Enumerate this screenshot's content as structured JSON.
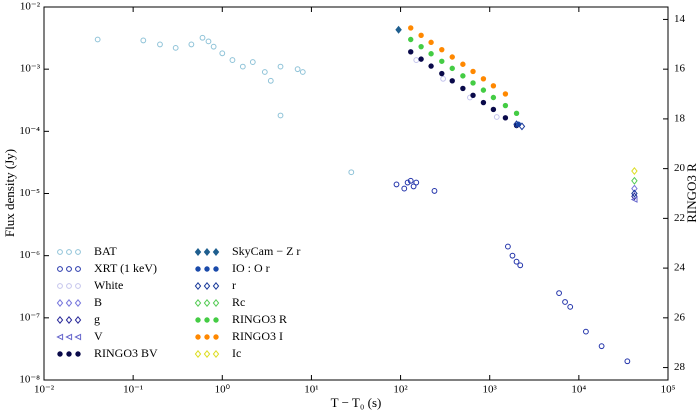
{
  "chart_data": {
    "type": "scatter",
    "xlabel": "T − T₀ (s)",
    "ylabel": "Flux density (Jy)",
    "y2label": "RINGO3 R",
    "xscale": "log",
    "yscale": "log",
    "xlim": [
      0.01,
      100000
    ],
    "ylim": [
      1e-08,
      0.01
    ],
    "y2lim": [
      13.5,
      28.5
    ],
    "xticks": [
      {
        "value": 0.01,
        "label": "10⁻²"
      },
      {
        "value": 0.1,
        "label": "10⁻¹"
      },
      {
        "value": 1,
        "label": "10⁰"
      },
      {
        "value": 10,
        "label": "10¹"
      },
      {
        "value": 100,
        "label": "10²"
      },
      {
        "value": 1000,
        "label": "10³"
      },
      {
        "value": 10000,
        "label": "10⁴"
      },
      {
        "value": 100000,
        "label": "10⁵"
      }
    ],
    "yticks": [
      {
        "value": 1e-08,
        "label": "10⁻⁸"
      },
      {
        "value": 1e-07,
        "label": "10⁻⁷"
      },
      {
        "value": 1e-06,
        "label": "10⁻⁶"
      },
      {
        "value": 1e-05,
        "label": "10⁻⁵"
      },
      {
        "value": 0.0001,
        "label": "10⁻⁴"
      },
      {
        "value": 0.001,
        "label": "10⁻³"
      },
      {
        "value": 0.01,
        "label": "10⁻²"
      }
    ],
    "y2ticks": [
      14,
      16,
      18,
      20,
      22,
      24,
      26,
      28
    ],
    "legend": "lower left",
    "series": [
      {
        "name": "BAT",
        "color": "#8fc3d8",
        "marker": "o",
        "filled": false,
        "x": [
          0.04,
          0.13,
          0.2,
          0.3,
          0.45,
          0.6,
          0.7,
          0.8,
          1.0,
          1.3,
          1.7,
          2.2,
          3,
          3.5,
          4.5,
          7,
          8,
          4.5,
          28
        ],
        "values": [
          0.003,
          0.0029,
          0.0025,
          0.0022,
          0.0025,
          0.0032,
          0.0028,
          0.0023,
          0.0018,
          0.0014,
          0.0011,
          0.0013,
          0.0009,
          0.00065,
          0.0011,
          0.001,
          0.0009,
          0.00018,
          2.2e-05
        ]
      },
      {
        "name": "XRT (1 keV)",
        "color": "#2233aa",
        "marker": "o",
        "filled": false,
        "x": [
          90,
          110,
          120,
          130,
          140,
          150,
          240,
          1600,
          1800,
          2000,
          2200,
          6000,
          7000,
          8000,
          12000,
          18000,
          35000
        ],
        "values": [
          1.4e-05,
          1.2e-05,
          1.5e-05,
          1.6e-05,
          1.3e-05,
          1.5e-05,
          1.1e-05,
          1.4e-06,
          1e-06,
          8e-07,
          7e-07,
          2.5e-07,
          1.8e-07,
          1.5e-07,
          6e-08,
          3.5e-08,
          2e-08
        ]
      },
      {
        "name": "White",
        "color": "#c4c4ec",
        "marker": "o",
        "filled": false,
        "x": [
          150,
          300,
          600,
          1200
        ],
        "values": [
          0.0014,
          0.0007,
          0.00035,
          0.00017
        ]
      },
      {
        "name": "B",
        "color": "#7777dd",
        "marker": "D",
        "filled": false,
        "x": [
          42000
        ],
        "values": [
          1.2e-05
        ]
      },
      {
        "name": "g",
        "color": "#2a2a9a",
        "marker": "D",
        "filled": false,
        "x": [
          42000
        ],
        "values": [
          9e-06
        ]
      },
      {
        "name": "V",
        "color": "#6666cc",
        "marker": "<",
        "filled": false,
        "x": [
          42000
        ],
        "values": [
          8e-06
        ]
      },
      {
        "name": "RINGO3  BV",
        "color": "#0a0a4a",
        "marker": "o",
        "filled": true,
        "x": [
          130,
          170,
          220,
          290,
          380,
          500,
          650,
          850,
          1100,
          1500,
          2000
        ],
        "values": [
          0.0019,
          0.00145,
          0.00112,
          0.00085,
          0.00065,
          0.00049,
          0.00038,
          0.00029,
          0.000225,
          0.000165,
          0.000124
        ]
      },
      {
        "name": "SkyCam − Z r",
        "color": "#1f5f8f",
        "marker": "D",
        "filled": true,
        "x": [
          95
        ],
        "values": [
          0.0043
        ]
      },
      {
        "name": "IO : O r",
        "color": "#1a4aaa",
        "marker": "o",
        "filled": true,
        "x": [
          2100
        ],
        "values": [
          0.00013
        ]
      },
      {
        "name": "r",
        "color": "#1a3a9a",
        "marker": "D",
        "filled": false,
        "x": [
          2000,
          2300,
          42000
        ],
        "values": [
          0.00013,
          0.00012,
          1e-05
        ]
      },
      {
        "name": "Rc",
        "color": "#55cc55",
        "marker": "D",
        "filled": false,
        "x": [
          42000
        ],
        "values": [
          1.6e-05
        ]
      },
      {
        "name": "RINGO3  R",
        "color": "#44cc44",
        "marker": "o",
        "filled": true,
        "x": [
          130,
          170,
          220,
          290,
          380,
          500,
          650,
          850,
          1100,
          1500,
          2000
        ],
        "values": [
          0.003,
          0.0023,
          0.00177,
          0.00134,
          0.00103,
          0.00078,
          0.0006,
          0.00046,
          0.00035,
          0.00026,
          0.000195
        ]
      },
      {
        "name": "RINGO3  I",
        "color": "#ff8800",
        "marker": "o",
        "filled": true,
        "x": [
          130,
          170,
          220,
          290,
          380,
          500,
          650,
          850,
          1100,
          1500
        ],
        "values": [
          0.0046,
          0.0035,
          0.0027,
          0.00206,
          0.00157,
          0.0012,
          0.00092,
          0.0007,
          0.00054,
          0.0004
        ]
      },
      {
        "name": "Ic",
        "color": "#dddd22",
        "marker": "D",
        "filled": false,
        "x": [
          42000
        ],
        "values": [
          2.3e-05
        ]
      }
    ]
  }
}
